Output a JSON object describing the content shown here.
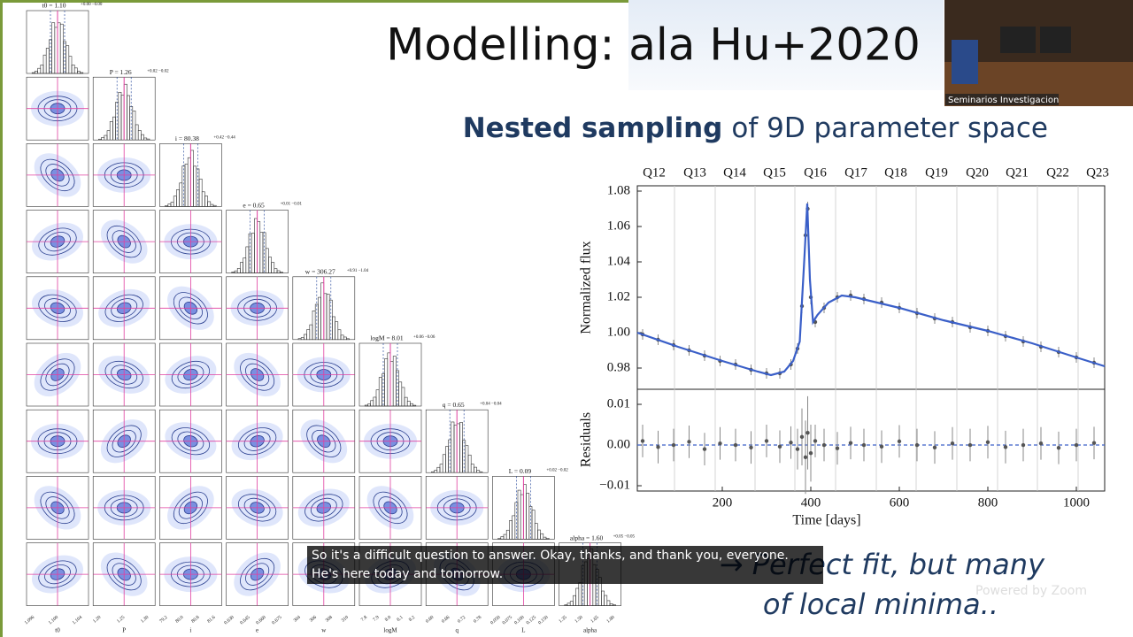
{
  "slide": {
    "title": "Modelling: ala Hu+2020",
    "subtitle_bold": "Nested sampling",
    "subtitle_rest": "of 9D parameter space",
    "conclusion": [
      "→ Perfect fit, but many",
      "of local minima.."
    ]
  },
  "corner_plot": {
    "parameters": [
      {
        "name": "t0",
        "title": "t0 = 1.10",
        "err": "+0.00 −0.00",
        "ticks": [
          "1.096",
          "1.100",
          "1.104"
        ]
      },
      {
        "name": "P",
        "title": "P = 1.26",
        "err": "+0.02 −0.02",
        "ticks": [
          "1.20",
          "1.25",
          "1.30"
        ]
      },
      {
        "name": "i",
        "title": "i = 80.38",
        "err": "+0.42 −0.44",
        "ticks": [
          "79.2",
          "80.0",
          "80.8",
          "81.6"
        ]
      },
      {
        "name": "e",
        "title": "e = 0.65",
        "err": "+0.01 −0.01",
        "ticks": [
          "0.630",
          "0.645",
          "0.660",
          "0.675"
        ]
      },
      {
        "name": "w",
        "title": "w = 306.27",
        "err": "+0.91 −1.04",
        "ticks": [
          "304",
          "306",
          "308",
          "310"
        ]
      },
      {
        "name": "logM",
        "title": "logM = 8.01",
        "err": "+0.06 −0.06",
        "ticks": [
          "7.8",
          "7.9",
          "8.0",
          "8.1",
          "8.2"
        ]
      },
      {
        "name": "q",
        "title": "q = 0.65",
        "err": "+0.04 −0.04",
        "ticks": [
          "0.60",
          "0.66",
          "0.72",
          "0.78"
        ]
      },
      {
        "name": "L",
        "title": "L = 0.09",
        "err": "+0.02 −0.02",
        "ticks": [
          "0.050",
          "0.075",
          "0.100",
          "0.125",
          "0.150"
        ]
      },
      {
        "name": "alpha",
        "title": "alpha = 1.60",
        "err": "+0.05 −0.05",
        "ticks": [
          "1.35",
          "1.50",
          "1.65",
          "1.80"
        ]
      }
    ]
  },
  "light_curve": {
    "xlabel": "Time [days]",
    "ylabel": "Normalized flux",
    "residual_ylabel": "Residuals",
    "xlim": [
      8,
      1064
    ],
    "xticks": [
      200,
      400,
      600,
      800,
      1000
    ],
    "ylim": [
      0.968,
      1.083
    ],
    "yticks": [
      0.98,
      {
        "value": 1.0,
        "label": "1.00"
      },
      1.02,
      1.04,
      1.06,
      1.08
    ],
    "quarters": {
      "labels": [
        "Q12",
        "Q13",
        "Q14",
        "Q15",
        "Q16",
        "Q17",
        "Q18",
        "Q19",
        "Q20",
        "Q21",
        "Q22",
        "Q23"
      ],
      "x": [
        46,
        138,
        228,
        318,
        410,
        502,
        592,
        684,
        776,
        866,
        958,
        1048
      ]
    },
    "quarter_boundaries": [
      92,
      184,
      274,
      364,
      456,
      548,
      638,
      730,
      822,
      912,
      1004
    ],
    "model": {
      "x": [
        8,
        100,
        200,
        280,
        310,
        340,
        360,
        375,
        385,
        392,
        398,
        405,
        415,
        440,
        470,
        500,
        600,
        700,
        800,
        900,
        1000,
        1064
      ],
      "values": [
        1.0,
        0.992,
        0.984,
        0.978,
        0.976,
        0.978,
        0.984,
        0.995,
        1.04,
        1.073,
        1.03,
        1.006,
        1.01,
        1.017,
        1.021,
        1.02,
        1.014,
        1.007,
        1.001,
        0.994,
        0.986,
        0.981
      ]
    },
    "observed": {
      "x": [
        20,
        55,
        90,
        125,
        160,
        195,
        230,
        265,
        300,
        330,
        355,
        370,
        380,
        388,
        393,
        400,
        410,
        430,
        460,
        490,
        520,
        560,
        600,
        640,
        680,
        720,
        760,
        800,
        840,
        880,
        920,
        960,
        1000,
        1040
      ],
      "values": [
        0.999,
        0.996,
        0.993,
        0.99,
        0.987,
        0.984,
        0.982,
        0.979,
        0.977,
        0.977,
        0.982,
        0.991,
        1.015,
        1.055,
        1.07,
        1.02,
        1.006,
        1.014,
        1.02,
        1.021,
        1.019,
        1.017,
        1.014,
        1.011,
        1.008,
        1.006,
        1.003,
        1.001,
        0.998,
        0.995,
        0.992,
        0.989,
        0.986,
        0.983
      ],
      "errors": [
        0.003,
        0.003,
        0.003,
        0.003,
        0.003,
        0.003,
        0.003,
        0.003,
        0.003,
        0.003,
        0.003,
        0.003,
        0.004,
        0.004,
        0.004,
        0.004,
        0.003,
        0.003,
        0.003,
        0.003,
        0.003,
        0.003,
        0.003,
        0.003,
        0.003,
        0.003,
        0.003,
        0.003,
        0.003,
        0.003,
        0.003,
        0.003,
        0.003,
        0.003
      ]
    },
    "residuals": {
      "ylim": [
        -0.0113,
        0.0137
      ],
      "yticks": [
        {
          "value": -0.01,
          "label": "−0.01"
        },
        {
          "value": 0,
          "label": "0.00"
        },
        0.01
      ],
      "x": [
        20,
        55,
        90,
        125,
        160,
        195,
        230,
        265,
        300,
        330,
        355,
        370,
        380,
        388,
        393,
        400,
        410,
        430,
        460,
        490,
        520,
        560,
        600,
        640,
        680,
        720,
        760,
        800,
        840,
        880,
        920,
        960,
        1000,
        1040
      ],
      "values": [
        0.001,
        -0.0005,
        0.0,
        0.0008,
        -0.001,
        0.0004,
        0.0,
        -0.0006,
        0.001,
        -0.0004,
        0.0006,
        -0.001,
        0.002,
        -0.003,
        0.003,
        -0.002,
        0.001,
        0.0,
        -0.0008,
        0.0005,
        0.0,
        -0.0004,
        0.0009,
        0.0,
        -0.0006,
        0.0004,
        0.0,
        0.0007,
        -0.0005,
        0.0,
        0.0004,
        -0.0007,
        0.0,
        0.0005
      ],
      "errors": [
        0.004,
        0.004,
        0.004,
        0.004,
        0.004,
        0.004,
        0.004,
        0.004,
        0.004,
        0.004,
        0.004,
        0.005,
        0.007,
        0.009,
        0.009,
        0.007,
        0.004,
        0.004,
        0.004,
        0.004,
        0.004,
        0.004,
        0.004,
        0.004,
        0.004,
        0.004,
        0.004,
        0.004,
        0.004,
        0.004,
        0.004,
        0.004,
        0.004,
        0.004
      ]
    }
  },
  "zoom": {
    "caption": [
      "So it's a difficult question to answer. Okay, thanks, and thank you, everyone.",
      "He's here today and tomorrow."
    ],
    "watermark": "Powered by Zoom",
    "camera_label": "Seminarios Investigacion"
  }
}
